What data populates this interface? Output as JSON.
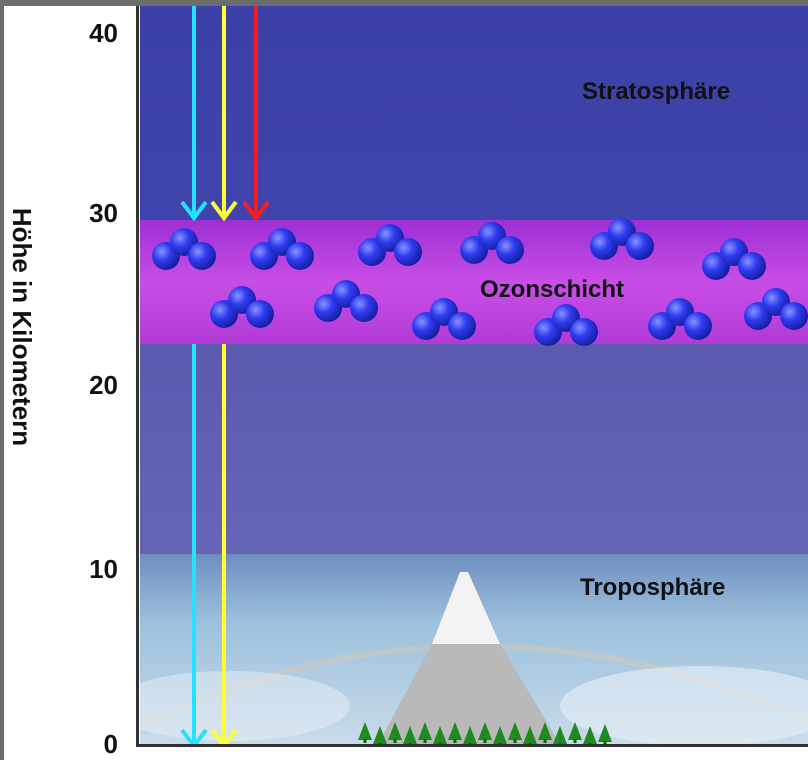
{
  "title": "",
  "y_axis": {
    "label": "Höhe in Kilometern",
    "ticks": [
      "40",
      "30",
      "20",
      "10",
      "0"
    ]
  },
  "layers": {
    "stratosphere": "Stratosphäre",
    "ozone": "Ozonschicht",
    "troposphere": "Troposphäre"
  },
  "arrows": [
    {
      "color": "#21e3ff",
      "ends_at_km": 0
    },
    {
      "color": "#ffff33",
      "ends_at_km": 0
    },
    {
      "color": "#ff1a1a",
      "ends_at_km": 30
    }
  ],
  "colors": {
    "stratosphere": "#3a3fa8",
    "ozone": "#c43fe0",
    "lower_stratosphere": "#5a5ab0",
    "troposphere_sky": "#8fb8d8",
    "mountain": "#b8b8b8",
    "snow": "#f4f4f4",
    "trees": "#1f8a1f",
    "molecule": "#2f3cf0"
  },
  "icons": {
    "molecule": "ozone-molecule-icon",
    "tree": "tree-icon"
  }
}
